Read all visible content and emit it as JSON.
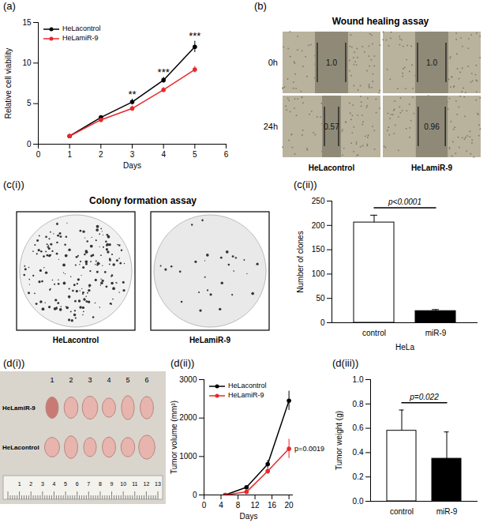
{
  "chart_data": [
    {
      "panel": "(a)",
      "type": "line",
      "x_label": "Days",
      "y_label": "Relative cell viability",
      "x": [
        1,
        2,
        3,
        4,
        5
      ],
      "series": [
        {
          "name": "HeLacontrol",
          "color": "#000000",
          "marker": "circle",
          "values": [
            1,
            3.3,
            5.2,
            7.9,
            12.0
          ],
          "errors": [
            0.05,
            0.2,
            0.35,
            0.35,
            0.7
          ]
        },
        {
          "name": "HeLamiR-9",
          "color": "#e8282b",
          "marker": "circle",
          "values": [
            1,
            3.0,
            4.4,
            6.7,
            9.2
          ],
          "errors": [
            0.05,
            0.2,
            0.3,
            0.3,
            0.4
          ]
        }
      ],
      "xlim": [
        0,
        6
      ],
      "xticks": [
        0,
        1,
        2,
        3,
        4,
        5,
        6
      ],
      "ylim": [
        0,
        15
      ],
      "yticks": [
        0,
        5,
        10,
        15
      ],
      "annotations": [
        {
          "x": 3,
          "text": "**"
        },
        {
          "x": 4,
          "text": "***"
        },
        {
          "x": 5,
          "text": "***"
        }
      ],
      "legend": "top-left"
    },
    {
      "panel": "(b)",
      "type": "image",
      "title": "Wound healing assay",
      "rows": [
        "0h",
        "24h"
      ],
      "columns": [
        "HeLacontrol",
        "HeLamiR-9"
      ],
      "cells": [
        [
          "1.0",
          "1.0"
        ],
        [
          "0.57",
          "0.96"
        ]
      ]
    },
    {
      "panel": "(c(i))",
      "type": "image",
      "title": "Colony formation assay",
      "columns": [
        "HeLacontrol",
        "HeLamiR-9"
      ]
    },
    {
      "panel": "(c(ii))",
      "type": "bar",
      "y_label": "Number of clones",
      "x_label": "HeLa",
      "categories": [
        "control",
        "miR-9"
      ],
      "values": [
        206,
        24
      ],
      "errors": [
        15,
        3
      ],
      "colors": [
        "#ffffff",
        "#000000"
      ],
      "ylim": [
        0,
        250
      ],
      "yticks": [
        0,
        50,
        100,
        150,
        200,
        250
      ],
      "annotations": [
        {
          "text": "p<0.0001"
        }
      ]
    },
    {
      "panel": "(d(i))",
      "type": "image",
      "rows": [
        "HeLamiR-9",
        "HeLacontrol"
      ],
      "columns": [
        "1",
        "2",
        "3",
        "4",
        "5",
        "6"
      ],
      "ruler": [
        "1",
        "2",
        "3",
        "4",
        "5",
        "6",
        "7",
        "8",
        "9",
        "10",
        "11",
        "12",
        "13"
      ]
    },
    {
      "panel": "(d(ii))",
      "type": "line",
      "x_label": "Days",
      "y_label": "Tumor volume (mm³)",
      "x": [
        5,
        10,
        15,
        20
      ],
      "series": [
        {
          "name": "HeLacontrol",
          "color": "#000000",
          "marker": "circle",
          "values": [
            0,
            200,
            800,
            2450
          ],
          "errors": [
            0,
            30,
            100,
            250
          ]
        },
        {
          "name": "HeLamiR-9",
          "color": "#e8282b",
          "marker": "circle",
          "values": [
            0,
            80,
            620,
            1200
          ],
          "errors": [
            0,
            20,
            80,
            250
          ]
        }
      ],
      "xlim": [
        0,
        21
      ],
      "xticks": [
        0,
        4,
        8,
        12,
        16,
        20
      ],
      "ylim": [
        0,
        3000
      ],
      "yticks": [
        0,
        1000,
        2000,
        3000
      ],
      "annotations": [
        {
          "text": "p=0.0019"
        }
      ],
      "legend": "top-left"
    },
    {
      "panel": "(d(iii))",
      "type": "bar",
      "y_label": "Tumor weight (g)",
      "categories": [
        "control",
        "miR-9"
      ],
      "values": [
        0.58,
        0.35
      ],
      "errors": [
        0.17,
        0.22
      ],
      "colors": [
        "#ffffff",
        "#000000"
      ],
      "ylim": [
        0,
        1
      ],
      "yticks": [
        {
          "value": 0,
          "label": "0.0"
        },
        0.2,
        0.4,
        0.6,
        0.8,
        {
          "value": 1,
          "label": "1.0"
        }
      ],
      "annotations": [
        {
          "text": "p=0.022"
        }
      ]
    }
  ]
}
